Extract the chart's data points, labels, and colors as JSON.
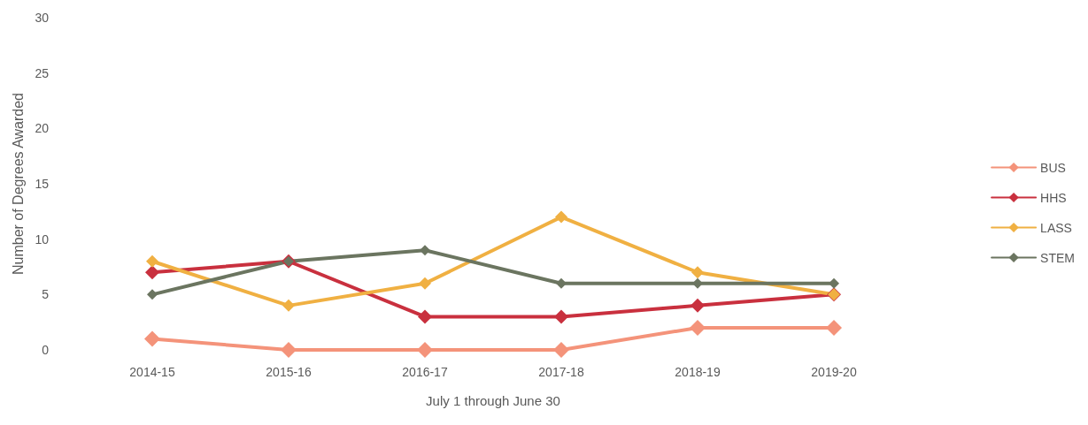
{
  "chart_data": {
    "type": "line",
    "xlabel": "July 1 through June 30",
    "ylabel": "Number of Degrees Awarded",
    "categories": [
      "2014-15",
      "2015-16",
      "2016-17",
      "2017-18",
      "2018-19",
      "2019-20"
    ],
    "series": [
      {
        "name": "BUS",
        "color": "#f4937a",
        "values": [
          1,
          0,
          0,
          0,
          2,
          2
        ]
      },
      {
        "name": "HHS",
        "color": "#c9303e",
        "values": [
          7,
          8,
          3,
          3,
          4,
          5
        ]
      },
      {
        "name": "LASS",
        "color": "#f0b042",
        "values": [
          8,
          4,
          6,
          12,
          7,
          5
        ]
      },
      {
        "name": "STEM",
        "color": "#6b7560",
        "values": [
          5,
          8,
          9,
          6,
          6,
          6
        ]
      }
    ],
    "ylim": [
      0,
      30
    ],
    "yticks": [
      0,
      5,
      10,
      15,
      20,
      25,
      30
    ],
    "grid": false,
    "legend": "right",
    "marker": "diamond",
    "line_style": "solid"
  }
}
